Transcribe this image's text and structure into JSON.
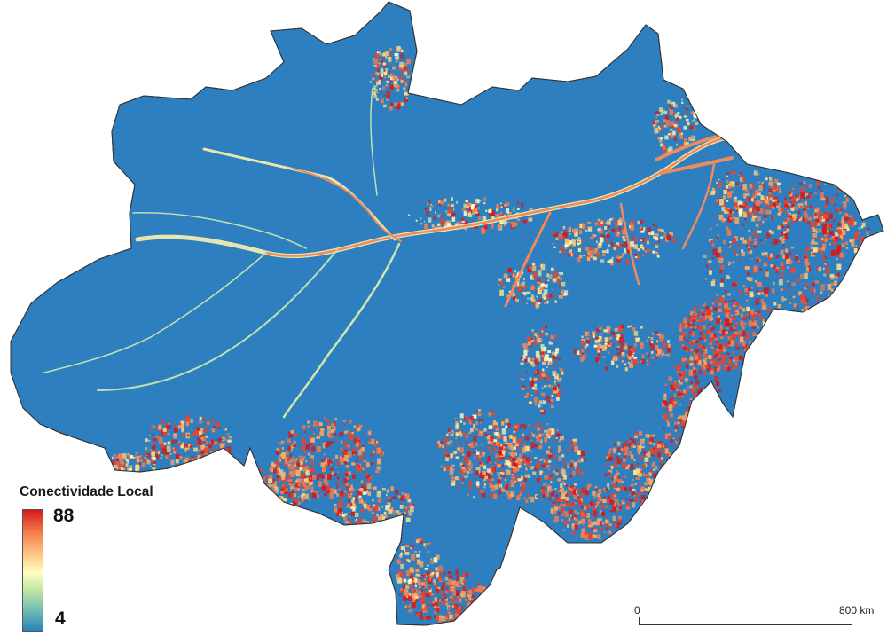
{
  "legend": {
    "title": "Conectividade Local",
    "max_label": "88",
    "min_label": "4",
    "ramp_colors": [
      "#d7191c",
      "#fdae61",
      "#ffffbf",
      "#abdda4",
      "#2b83ba"
    ]
  },
  "scalebar": {
    "start_label": "0",
    "end_label": "800 km"
  },
  "map": {
    "low_color": "#2e7fbf",
    "high_color": "#d7191c",
    "river_color": "#ee8a5c"
  }
}
